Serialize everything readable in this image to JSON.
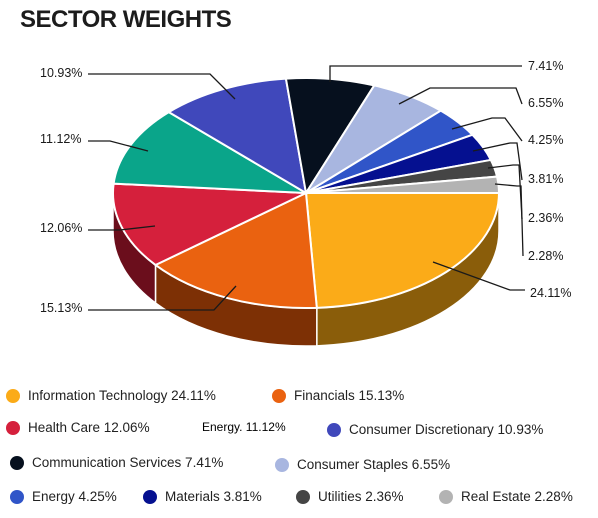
{
  "chart_data": {
    "type": "pie",
    "title": "SECTOR WEIGHTS",
    "slices": [
      {
        "label": "24.11%",
        "value": 24.11,
        "color": "#fbab18",
        "side": "#8a5d0a"
      },
      {
        "label": "15.13%",
        "value": 15.13,
        "color": "#ea6210",
        "side": "#7d3005"
      },
      {
        "label": "12.06%",
        "value": 12.06,
        "color": "#d5203c",
        "side": "#6b0e1c"
      },
      {
        "label": "11.12%",
        "value": 11.12,
        "color": "#0aa58a",
        "side": "#045345"
      },
      {
        "label": "10.93%",
        "value": 10.93,
        "color": "#4048bb",
        "side": "#1f2460"
      },
      {
        "label": "7.41%",
        "value": 7.41,
        "color": "#06101e",
        "side": "#000000"
      },
      {
        "label": "6.55%",
        "value": 6.55,
        "color": "#a8b6e0",
        "side": "#55607e"
      },
      {
        "label": "4.25%",
        "value": 4.25,
        "color": "#3055c8",
        "side": "#182a65"
      },
      {
        "label": "3.81%",
        "value": 3.81,
        "color": "#051090",
        "side": "#020848"
      },
      {
        "label": "2.36%",
        "value": 2.36,
        "color": "#454545",
        "side": "#222222"
      },
      {
        "label": "2.28%",
        "value": 2.28,
        "color": "#b3b3b3",
        "side": "#5a5a5a"
      }
    ],
    "legend": [
      {
        "text": "Information Technology 24.11%",
        "color": "#fbab18"
      },
      {
        "text": "Financials 15.13%",
        "color": "#ea6210"
      },
      {
        "text": "Health Care 12.06%",
        "color": "#d5203c"
      },
      {
        "text": "Energy. 11.12%",
        "color": null
      },
      {
        "text": "Consumer Discretionary 10.93%",
        "color": "#4048bb"
      },
      {
        "text": "Communication Services 7.41%",
        "color": "#06101e"
      },
      {
        "text": "Consumer Staples 6.55%",
        "color": "#a8b6e0"
      },
      {
        "text": "Energy 4.25%",
        "color": "#3055c8"
      },
      {
        "text": "Materials 3.81%",
        "color": "#051090"
      },
      {
        "text": "Utilities 2.36%",
        "color": "#454545"
      },
      {
        "text": "Real Estate 2.28%",
        "color": "#b3b3b3"
      }
    ]
  }
}
